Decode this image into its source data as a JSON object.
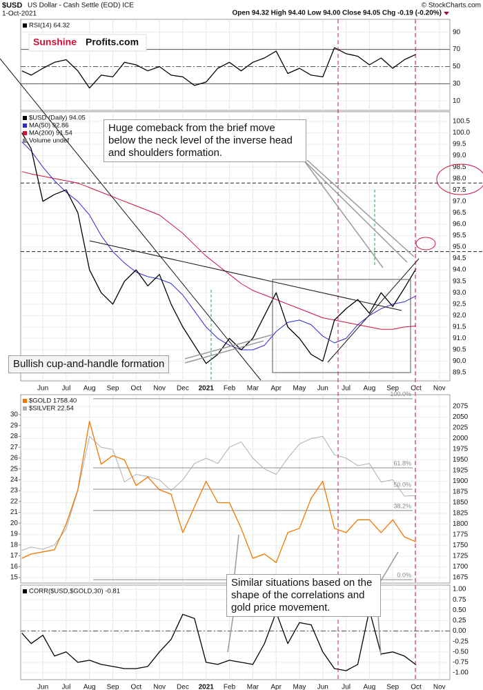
{
  "header": {
    "symbol": "$USD",
    "name": "US Dollar - Cash Settle (EOD) ICE",
    "date": "1-Oct-2021",
    "quote": "Open 94.32 High 94.40 Low 94.00 Close 94.05 Chg -0.19 (-0.20%)",
    "source": "© StockCharts.com"
  },
  "logo": {
    "part1": "Sunshine",
    "part2": "Profits.com"
  },
  "chart_data": [
    {
      "type": "line",
      "xlim": [
        -0.95,
        17.45
      ],
      "ylim": [
        -1,
        105
      ],
      "yticks": [
        10,
        30,
        50,
        70,
        90
      ],
      "levels": [
        30,
        50,
        70
      ],
      "x": [
        -0.9,
        -0.5,
        0,
        0.5,
        1,
        1.5,
        2,
        2.5,
        3,
        3.5,
        4,
        4.5,
        5,
        5.5,
        6,
        6.5,
        7,
        7.5,
        8,
        8.5,
        9,
        9.5,
        10,
        10.5,
        11,
        11.5,
        12,
        12.5,
        13,
        13.5,
        14,
        14.5,
        15,
        15.5,
        16
      ],
      "series": [
        {
          "name": "RSI(14) 64.32",
          "color": "#000000",
          "values": [
            45,
            40,
            48,
            55,
            58,
            45,
            25,
            40,
            38,
            55,
            52,
            45,
            50,
            40,
            38,
            28,
            32,
            48,
            55,
            45,
            55,
            60,
            68,
            42,
            48,
            40,
            38,
            72,
            65,
            62,
            52,
            60,
            48,
            58,
            64.32
          ]
        }
      ]
    },
    {
      "type": "line",
      "xlim": [
        -0.95,
        17.45
      ],
      "ylim": [
        89.14,
        100.92
      ],
      "yticks": [
        100.5,
        {
          "value": 100,
          "label": "100.0"
        },
        99.5,
        {
          "value": 99,
          "label": "99.0"
        },
        98.5,
        {
          "value": 98,
          "label": "98.0"
        },
        97.5,
        {
          "value": 97,
          "label": "97.0"
        },
        96.5,
        {
          "value": 96,
          "label": "96.0"
        },
        95.5,
        {
          "value": 95,
          "label": "95.0"
        },
        94.5,
        {
          "value": 94,
          "label": "94.0"
        },
        93.5,
        {
          "value": 93,
          "label": "93.0"
        },
        92.5,
        {
          "value": 92,
          "label": "92.0"
        },
        91.5,
        {
          "value": 91,
          "label": "91.0"
        },
        90.5,
        {
          "value": 90,
          "label": "90.0"
        },
        89.5
      ],
      "xticks": [
        {
          "value": 0,
          "label": "Jun"
        },
        {
          "value": 1,
          "label": "Jul"
        },
        {
          "value": 2,
          "label": "Aug"
        },
        {
          "value": 3,
          "label": "Sep"
        },
        {
          "value": 4,
          "label": "Oct"
        },
        {
          "value": 5,
          "label": "Nov"
        },
        {
          "value": 6,
          "label": "Dec"
        },
        {
          "value": 7,
          "label": "2021"
        },
        {
          "value": 8,
          "label": "Feb"
        },
        {
          "value": 9,
          "label": "Mar"
        },
        {
          "value": 10,
          "label": "Apr"
        },
        {
          "value": 11,
          "label": "May"
        },
        {
          "value": 12,
          "label": "Jun"
        },
        {
          "value": 13,
          "label": "Jul"
        },
        {
          "value": 14,
          "label": "Aug"
        },
        {
          "value": 15,
          "label": "Sep"
        },
        {
          "value": 16,
          "label": "Oct"
        },
        {
          "value": 17,
          "label": "Nov"
        }
      ],
      "hlines": [
        97.8,
        94.8
      ],
      "volume_label": "Volume undef",
      "annotations": [
        "Huge comeback from the brief move below the neck level of the inverse head and shoulders formation.",
        "Bullish cup-and-handle formation"
      ],
      "x": [
        -0.9,
        -0.5,
        0,
        0.5,
        1,
        1.5,
        2,
        2.5,
        3,
        3.5,
        4,
        4.5,
        5,
        5.5,
        6,
        6.5,
        7,
        7.5,
        8,
        8.5,
        9,
        9.5,
        10,
        10.5,
        11,
        11.5,
        12,
        12.5,
        13,
        13.5,
        14,
        14.5,
        15,
        15.5,
        16
      ],
      "series": [
        {
          "name": "$USD (Daily) 94.05",
          "color": "#000000",
          "values": [
            100.0,
            99.3,
            97.0,
            97.3,
            97.5,
            96.5,
            94.0,
            93.0,
            92.5,
            93.5,
            94.0,
            93.3,
            93.8,
            92.5,
            91.5,
            90.7,
            89.9,
            90.3,
            91.0,
            90.5,
            91.0,
            92.0,
            93.0,
            91.5,
            91.0,
            90.3,
            90.0,
            91.8,
            92.3,
            92.7,
            92.1,
            93.0,
            92.4,
            93.2,
            94.05
          ]
        },
        {
          "name": "MA(50) 92.86",
          "color": "#2a2ad0",
          "values": [
            99.6,
            99.2,
            98.5,
            97.9,
            97.4,
            97.0,
            96.4,
            95.5,
            94.8,
            94.3,
            93.9,
            93.7,
            93.6,
            93.4,
            92.9,
            92.2,
            91.5,
            91.0,
            90.7,
            90.5,
            90.5,
            90.7,
            91.3,
            91.7,
            91.8,
            91.6,
            91.1,
            90.8,
            91.0,
            91.6,
            92.0,
            92.3,
            92.5,
            92.6,
            92.86
          ]
        },
        {
          "name": "MA(200) 91.54",
          "color": "#d0103a",
          "values": [
            98.3,
            98.2,
            98.1,
            98.0,
            97.9,
            97.8,
            97.6,
            97.4,
            97.2,
            97.0,
            96.8,
            96.6,
            96.4,
            96.0,
            95.6,
            95.1,
            94.6,
            94.2,
            93.8,
            93.4,
            93.1,
            92.9,
            92.7,
            92.5,
            92.3,
            92.1,
            91.9,
            91.8,
            91.7,
            91.6,
            91.5,
            91.4,
            91.4,
            91.5,
            91.54
          ]
        }
      ]
    },
    {
      "type": "line",
      "xlim": [
        -0.95,
        17.45
      ],
      "ylim": [
        14.49,
        31.84
      ],
      "yticks": [
        15,
        16,
        17,
        18,
        19,
        20,
        21,
        22,
        23,
        24,
        25,
        26,
        27,
        28,
        29,
        30
      ],
      "y2lim": [
        1662.1,
        2102.4
      ],
      "y2ticks": [
        1675,
        1700,
        1725,
        1750,
        1775,
        1800,
        1825,
        1850,
        1875,
        1900,
        1925,
        1950,
        1975,
        2000,
        2025,
        2050,
        2075
      ],
      "fib_levels": [
        100,
        61.8,
        50,
        38.2,
        0
      ],
      "value_labels": [
        "100.0%",
        "61.8%",
        "50.0%",
        "38.2%",
        "0.0%"
      ],
      "fib_range": [
        1670,
        2093
      ],
      "x": [
        -0.9,
        -0.5,
        0,
        0.5,
        1,
        1.5,
        2,
        2.5,
        3,
        3.5,
        4,
        4.5,
        5,
        5.5,
        6,
        6.5,
        7,
        7.5,
        8,
        8.5,
        9,
        9.5,
        10,
        10.5,
        11,
        11.5,
        12,
        12.5,
        13,
        13.5,
        14,
        14.5,
        15,
        15.5,
        16
      ],
      "series": [
        {
          "name": "$GOLD 1758.40",
          "color": "#f07800",
          "axis": "y2",
          "values": [
            1720,
            1730,
            1735,
            1740,
            1800,
            1880,
            2040,
            1940,
            1960,
            1950,
            1890,
            1910,
            1880,
            1870,
            1780,
            1840,
            1900,
            1850,
            1850,
            1790,
            1720,
            1730,
            1710,
            1780,
            1790,
            1860,
            1900,
            1790,
            1780,
            1810,
            1810,
            1780,
            1810,
            1770,
            1758.4
          ]
        },
        {
          "name": "$SILVER 22.54",
          "color": "#a8b0b8",
          "values": [
            17.5,
            17.8,
            17.6,
            18.0,
            19.5,
            23.0,
            28.0,
            27.0,
            26.8,
            23.8,
            24.5,
            24.3,
            24.0,
            23.0,
            24.0,
            25.5,
            26.0,
            25.5,
            27.0,
            27.5,
            26.0,
            25.0,
            24.5,
            26.0,
            27.3,
            27.8,
            28.0,
            26.3,
            26.0,
            25.3,
            25.5,
            23.8,
            24.0,
            22.5,
            22.54
          ]
        }
      ]
    },
    {
      "type": "line",
      "xlim": [
        -0.95,
        17.45
      ],
      "ylim": [
        -1.165,
        1.1
      ],
      "yticks": [
        {
          "value": 1,
          "label": "1.00"
        },
        0.75,
        {
          "value": 0.5,
          "label": "0.50"
        },
        0.25,
        {
          "value": 0,
          "label": "0.00"
        },
        -0.25,
        {
          "value": -0.5,
          "label": "-0.50"
        },
        -0.75,
        {
          "value": -1,
          "label": "-1.00"
        }
      ],
      "xticks": [
        {
          "value": 0,
          "label": "Jun"
        },
        {
          "value": 1,
          "label": "Jul"
        },
        {
          "value": 2,
          "label": "Aug"
        },
        {
          "value": 3,
          "label": "Sep"
        },
        {
          "value": 4,
          "label": "Oct"
        },
        {
          "value": 5,
          "label": "Nov"
        },
        {
          "value": 6,
          "label": "Dec"
        },
        {
          "value": 7,
          "label": "2021"
        },
        {
          "value": 8,
          "label": "Feb"
        },
        {
          "value": 9,
          "label": "Mar"
        },
        {
          "value": 10,
          "label": "Apr"
        },
        {
          "value": 11,
          "label": "May"
        },
        {
          "value": 12,
          "label": "Jun"
        },
        {
          "value": 13,
          "label": "Jul"
        },
        {
          "value": 14,
          "label": "Aug"
        },
        {
          "value": 15,
          "label": "Sep"
        },
        {
          "value": 16,
          "label": "Oct"
        },
        {
          "value": 17,
          "label": "Nov"
        }
      ],
      "levels": [
        0
      ],
      "annotations": [
        "Similar situations based on the shape of the correlations and gold price movement."
      ],
      "x": [
        -0.9,
        -0.5,
        0,
        0.5,
        1,
        1.5,
        2,
        2.5,
        3,
        3.5,
        4,
        4.5,
        5,
        5.5,
        6,
        6.5,
        7,
        7.5,
        8,
        8.5,
        9,
        9.5,
        10,
        10.5,
        11,
        11.5,
        12,
        12.5,
        13,
        13.5,
        14,
        14.5,
        15,
        15.5,
        16
      ],
      "series": [
        {
          "name": "CORR($USD,$GOLD,30) -0.81",
          "color": "#000000",
          "values": [
            -0.05,
            -0.3,
            -0.1,
            -0.6,
            -0.5,
            -0.75,
            -0.7,
            -0.8,
            -0.85,
            -0.9,
            -0.9,
            -0.85,
            -0.5,
            -0.2,
            0.4,
            0.3,
            -0.75,
            -0.8,
            -0.7,
            -0.75,
            -0.8,
            -0.3,
            0.45,
            -0.3,
            0.2,
            0.15,
            -0.5,
            -0.9,
            -0.95,
            -0.8,
            0.5,
            -0.55,
            -0.5,
            -0.6,
            -0.81
          ]
        }
      ]
    }
  ]
}
